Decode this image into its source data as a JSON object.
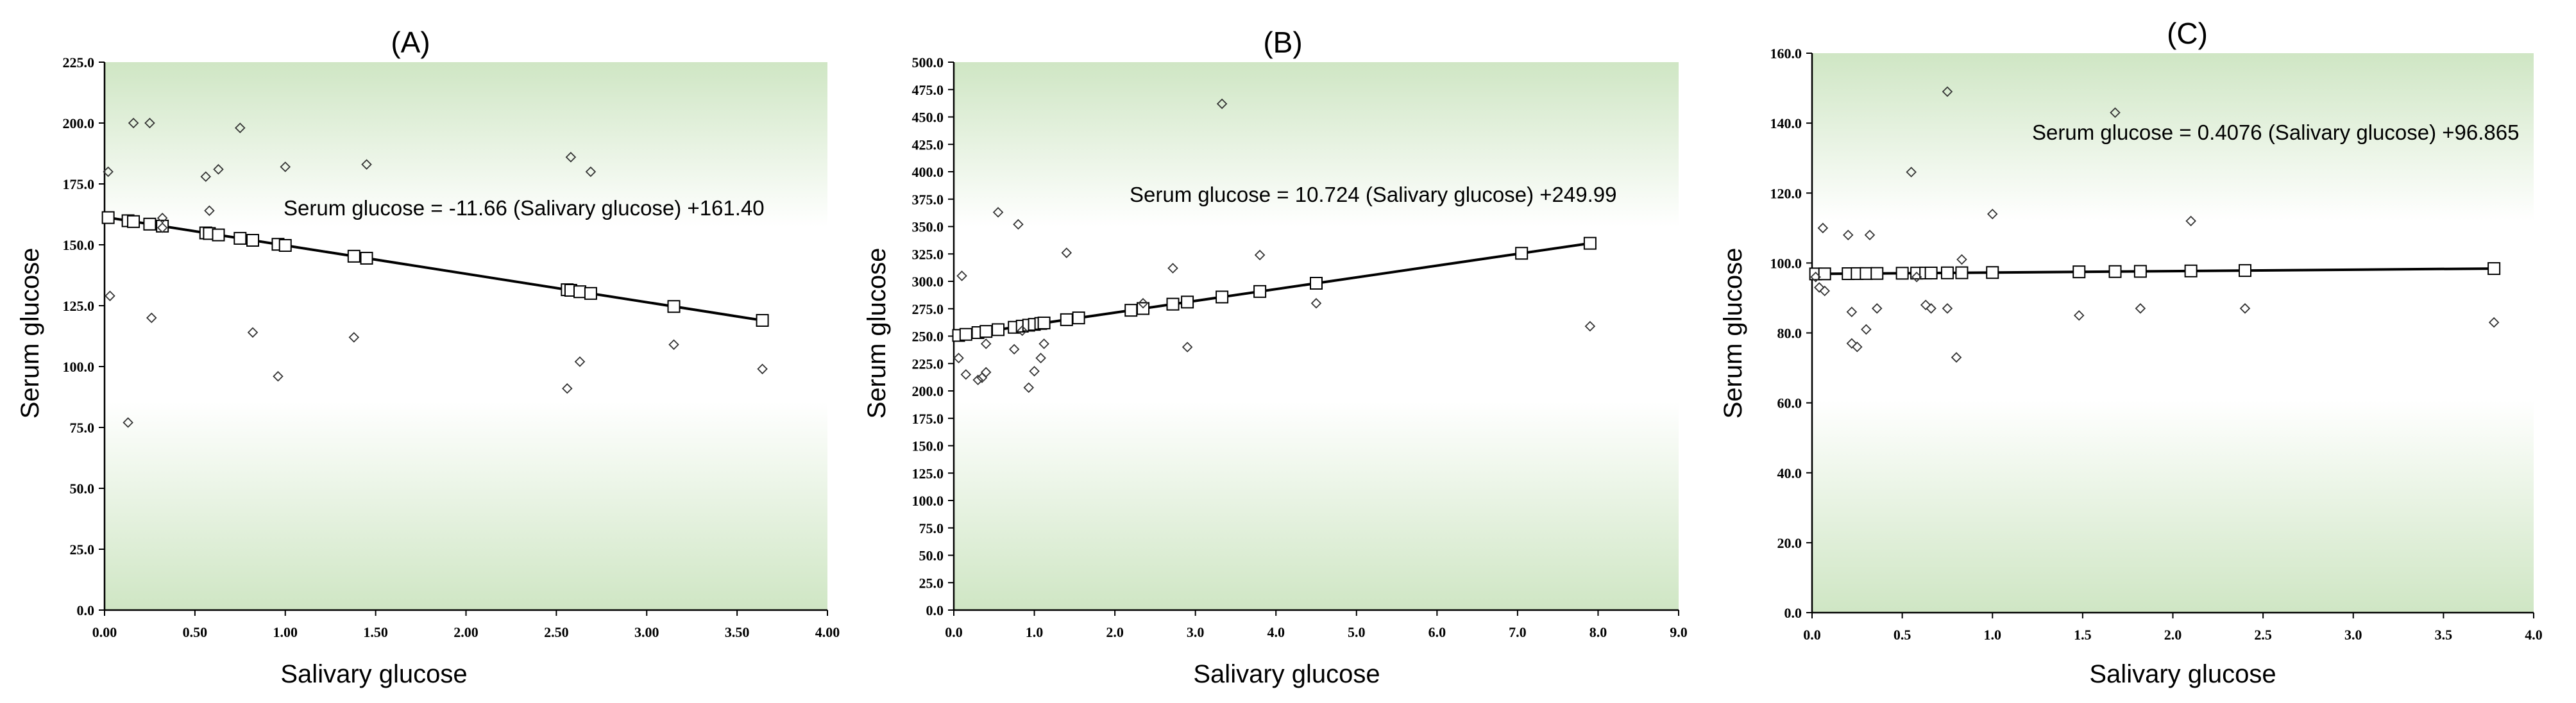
{
  "chart_data": [
    {
      "type": "scatter",
      "title": "(A)",
      "xlabel": "Salivary glucose",
      "ylabel": "Serum glucose",
      "xlim": [
        0,
        4
      ],
      "ylim": [
        0,
        225
      ],
      "xticks": [
        "0.00",
        "0.50",
        "1.00",
        "1.50",
        "2.00",
        "2.50",
        "3.00",
        "3.50",
        "4.00"
      ],
      "yticks": [
        "0.0",
        "25.0",
        "50.0",
        "75.0",
        "100.0",
        "125.0",
        "150.0",
        "175.0",
        "200.0",
        "225.0"
      ],
      "annotation": "Serum glucose = -11.66 (Salivary glucose) +161.40",
      "trend": {
        "slope": -11.66,
        "intercept": 161.4
      },
      "observed": [
        [
          0.02,
          180
        ],
        [
          0.03,
          129
        ],
        [
          0.13,
          77
        ],
        [
          0.16,
          200
        ],
        [
          0.25,
          200
        ],
        [
          0.26,
          120
        ],
        [
          0.32,
          161
        ],
        [
          0.32,
          157
        ],
        [
          0.56,
          178
        ],
        [
          0.58,
          164
        ],
        [
          0.63,
          181
        ],
        [
          0.75,
          198
        ],
        [
          0.82,
          114
        ],
        [
          0.96,
          96
        ],
        [
          1.0,
          182
        ],
        [
          1.38,
          112
        ],
        [
          1.45,
          183
        ],
        [
          2.56,
          91
        ],
        [
          2.58,
          186
        ],
        [
          2.63,
          102
        ],
        [
          2.69,
          180
        ],
        [
          3.15,
          109
        ],
        [
          3.64,
          99
        ]
      ],
      "predicted_x": [
        0.02,
        0.13,
        0.16,
        0.25,
        0.32,
        0.56,
        0.58,
        0.63,
        0.75,
        0.82,
        0.96,
        1.0,
        1.38,
        1.45,
        2.56,
        2.58,
        2.63,
        2.69,
        3.15,
        3.64
      ]
    },
    {
      "type": "scatter",
      "title": "(B)",
      "xlabel": "Salivary glucose",
      "ylabel": "Serum glucose",
      "xlim": [
        0,
        9
      ],
      "ylim": [
        0,
        500
      ],
      "xticks": [
        "0.0",
        "1.0",
        "2.0",
        "3.0",
        "4.0",
        "5.0",
        "6.0",
        "7.0",
        "8.0",
        "9.0"
      ],
      "yticks": [
        "0.0",
        "25.0",
        "50.0",
        "75.0",
        "100.0",
        "125.0",
        "150.0",
        "175.0",
        "200.0",
        "225.0",
        "250.0",
        "275.0",
        "300.0",
        "325.0",
        "350.0",
        "375.0",
        "400.0",
        "425.0",
        "450.0",
        "475.0",
        "500.0"
      ],
      "annotation": "Serum glucose = 10.724 (Salivary glucose) +249.99",
      "trend": {
        "slope": 10.724,
        "intercept": 249.99
      },
      "observed": [
        [
          0.06,
          230
        ],
        [
          0.1,
          305
        ],
        [
          0.15,
          215
        ],
        [
          0.3,
          210
        ],
        [
          0.35,
          212
        ],
        [
          0.4,
          217
        ],
        [
          0.4,
          243
        ],
        [
          0.55,
          363
        ],
        [
          0.75,
          238
        ],
        [
          0.8,
          352
        ],
        [
          0.85,
          255
        ],
        [
          0.93,
          203
        ],
        [
          1.0,
          218
        ],
        [
          1.08,
          230
        ],
        [
          1.12,
          243
        ],
        [
          1.4,
          326
        ],
        [
          2.35,
          280
        ],
        [
          2.72,
          312
        ],
        [
          2.9,
          240
        ],
        [
          3.33,
          462
        ],
        [
          3.8,
          324
        ],
        [
          4.5,
          280
        ],
        [
          7.9,
          259
        ]
      ],
      "predicted_x": [
        0.06,
        0.15,
        0.3,
        0.4,
        0.55,
        0.75,
        0.85,
        0.93,
        1.0,
        1.08,
        1.12,
        1.4,
        1.55,
        2.2,
        2.35,
        2.72,
        2.9,
        3.33,
        3.8,
        4.5,
        7.05,
        7.9
      ]
    },
    {
      "type": "scatter",
      "title": "(C)",
      "xlabel": "Salivary glucose",
      "ylabel": "Serum glucose",
      "xlim": [
        0,
        4
      ],
      "ylim": [
        0,
        160
      ],
      "xticks": [
        "0.0",
        "0.5",
        "1.0",
        "1.5",
        "2.0",
        "2.5",
        "3.0",
        "3.5",
        "4.0"
      ],
      "yticks": [
        "0.0",
        "20.0",
        "40.0",
        "60.0",
        "80.0",
        "100.0",
        "120.0",
        "140.0",
        "160.0"
      ],
      "annotation": "Serum glucose = 0.4076 (Salivary glucose) +96.865",
      "trend": {
        "slope": 0.4076,
        "intercept": 96.865
      },
      "observed": [
        [
          0.02,
          96
        ],
        [
          0.04,
          93
        ],
        [
          0.06,
          110
        ],
        [
          0.07,
          92
        ],
        [
          0.2,
          108
        ],
        [
          0.22,
          86
        ],
        [
          0.22,
          77
        ],
        [
          0.25,
          76
        ],
        [
          0.3,
          81
        ],
        [
          0.32,
          108
        ],
        [
          0.36,
          87
        ],
        [
          0.55,
          126
        ],
        [
          0.58,
          96
        ],
        [
          0.63,
          88
        ],
        [
          0.66,
          87
        ],
        [
          0.75,
          149
        ],
        [
          0.75,
          87
        ],
        [
          0.8,
          73
        ],
        [
          0.83,
          101
        ],
        [
          1.0,
          114
        ],
        [
          1.48,
          85
        ],
        [
          1.68,
          143
        ],
        [
          1.82,
          87
        ],
        [
          2.1,
          112
        ],
        [
          2.4,
          87
        ],
        [
          3.78,
          83
        ]
      ],
      "predicted_x": [
        0.02,
        0.07,
        0.2,
        0.25,
        0.3,
        0.36,
        0.5,
        0.58,
        0.63,
        0.66,
        0.75,
        0.83,
        1.0,
        1.48,
        1.68,
        1.82,
        2.1,
        2.4,
        3.78
      ]
    }
  ]
}
